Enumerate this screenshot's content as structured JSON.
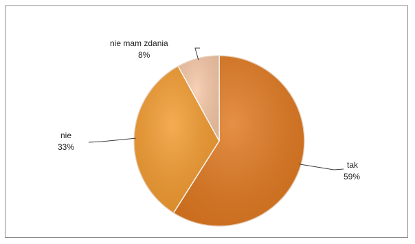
{
  "chart_data": {
    "type": "pie",
    "title": "",
    "slices": [
      {
        "label": "tak",
        "value": 59,
        "value_label": "59%",
        "color": "#e0781f"
      },
      {
        "label": "nie",
        "value": 33,
        "value_label": "33%",
        "color": "#f29a2e"
      },
      {
        "label": "nie mam zdania",
        "value": 8,
        "value_label": "8%",
        "color": "#f6c7a6"
      }
    ],
    "start_angle_deg": 0,
    "direction": "clockwise",
    "legend": "none",
    "data_labels": "outside-with-leader-lines"
  }
}
